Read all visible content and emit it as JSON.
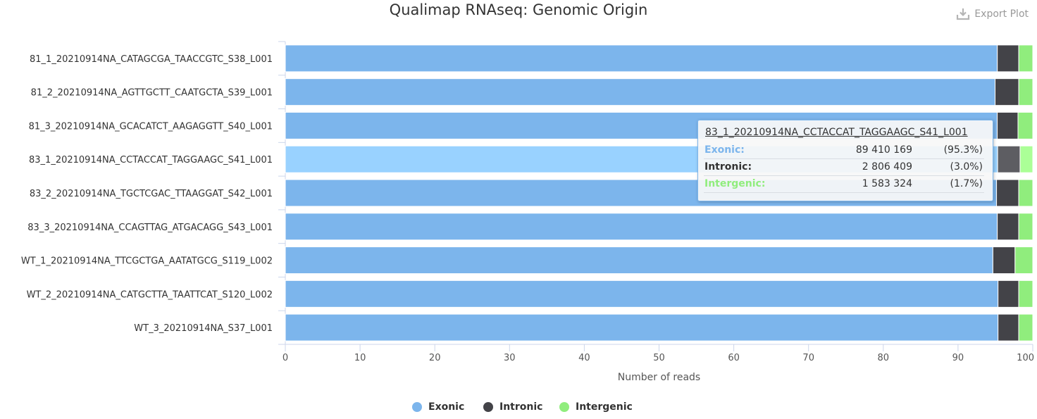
{
  "title": "Qualimap RNAseq: Genomic Origin",
  "export_label": "Export Plot",
  "chart_data": {
    "type": "bar",
    "orientation": "horizontal",
    "stacking": "percent",
    "categories": [
      "81_1_20210914NA_CATAGCGA_TAACCGTC_S38_L001",
      "81_2_20210914NA_AGTTGCTT_CAATGCTA_S39_L001",
      "81_3_20210914NA_GCACATCT_AAGAGGTT_S40_L001",
      "83_1_20210914NA_CCTACCAT_TAGGAAGC_S41_L001",
      "83_2_20210914NA_TGCTCGAC_TTAAGGAT_S42_L001",
      "83_3_20210914NA_CCAGTTAG_ATGACAGG_S43_L001",
      "WT_1_20210914NA_TTCGCTGA_AATATGCG_S119_L002",
      "WT_2_20210914NA_CATGCTTA_TAATTCAT_S120_L002",
      "WT_3_20210914NA_S37_L001"
    ],
    "series": [
      {
        "name": "Exonic",
        "color": "#7cb5ec",
        "values": [
          96.4,
          96.1,
          96.2,
          95.3,
          96.2,
          96.3,
          95.8,
          96.4,
          96.4
        ]
      },
      {
        "name": "Intronic",
        "color": "#434348",
        "values": [
          2.9,
          3.2,
          2.8,
          3.0,
          3.0,
          2.9,
          3.0,
          2.8,
          2.8
        ]
      },
      {
        "name": "Intergenic",
        "color": "#90ed7d",
        "values": [
          1.9,
          1.9,
          2.0,
          1.7,
          1.9,
          1.9,
          2.4,
          1.9,
          1.9
        ]
      }
    ],
    "highlighted_index": 3,
    "highlight_colors": [
      "#99d2ff",
      "#5d5d62",
      "#abff97"
    ],
    "xlabel": "Number of reads",
    "xlim": [
      0,
      100
    ],
    "xticks": [
      0,
      10,
      20,
      30,
      40,
      50,
      60,
      70,
      80,
      90,
      100
    ],
    "grid": false,
    "legend_position": "bottom"
  },
  "tooltip": {
    "title": "83_1_20210914NA_CCTACCAT_TAGGAAGC_S41_L001",
    "rows": [
      {
        "name": "Exonic:",
        "value": "89 410 169",
        "pct": "(95.3%)",
        "color": "#7cb5ec"
      },
      {
        "name": "Intronic:",
        "value": "2 806 409",
        "pct": "(3.0%)",
        "color": "#333333"
      },
      {
        "name": "Intergenic:",
        "value": "1 583 324",
        "pct": "(1.7%)",
        "color": "#90ed7d"
      }
    ]
  },
  "legend": [
    {
      "label": "Exonic",
      "color": "#7cb5ec"
    },
    {
      "label": "Intronic",
      "color": "#434348"
    },
    {
      "label": "Intergenic",
      "color": "#90ed7d"
    }
  ]
}
